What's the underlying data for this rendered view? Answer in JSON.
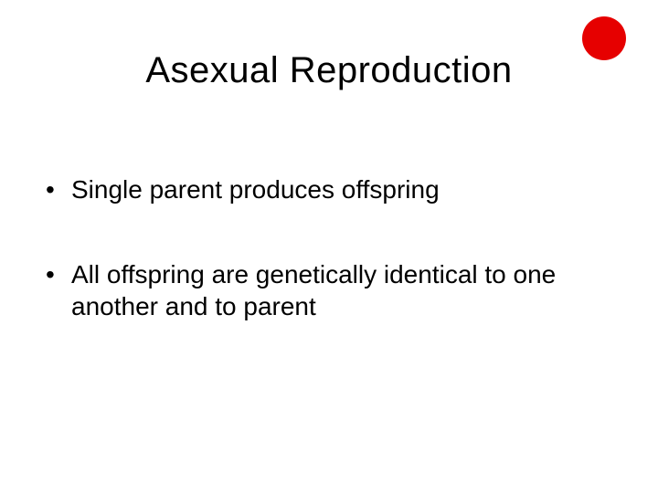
{
  "slide": {
    "title": "Asexual Reproduction",
    "bullets": [
      "Single parent produces offspring",
      "All offspring are genetically identical to one another and to parent"
    ],
    "corner_circle_color": "#e60000",
    "background_color": "#ffffff",
    "title_fontsize": 40,
    "bullet_fontsize": 28,
    "text_color": "#000000"
  }
}
